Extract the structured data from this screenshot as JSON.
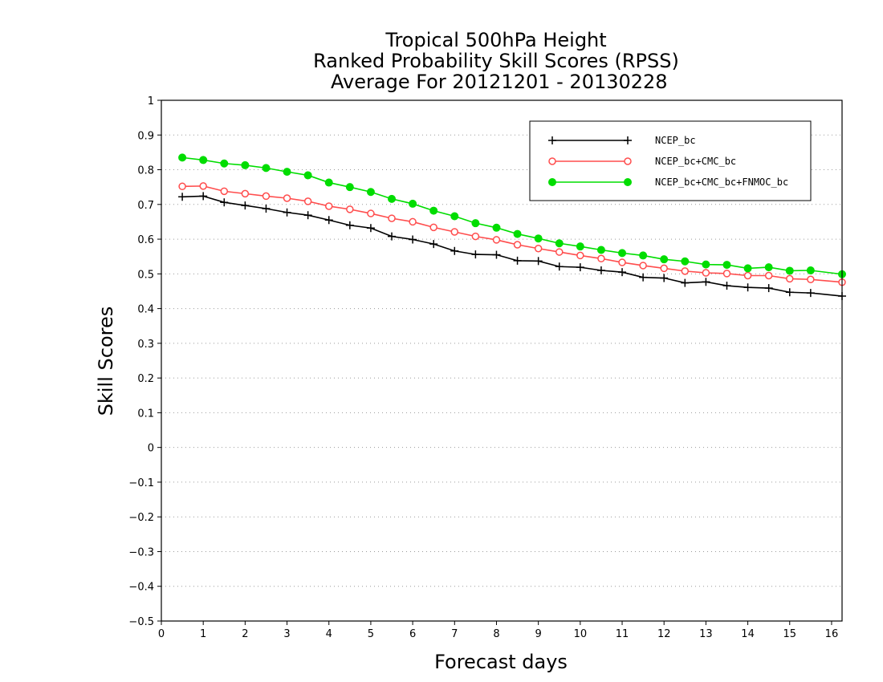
{
  "chart_data": {
    "type": "line",
    "title_lines": [
      "Tropical 500hPa Height",
      "Ranked Probability Skill Scores (RPSS)",
      " Average For 20121201 - 20130228"
    ],
    "xlabel": "Forecast days",
    "ylabel": "Skill Scores",
    "xlim": [
      0,
      16.25
    ],
    "ylim": [
      -0.5,
      1
    ],
    "x_ticks": [
      0,
      1,
      2,
      3,
      4,
      5,
      6,
      7,
      8,
      9,
      10,
      11,
      12,
      13,
      14,
      15,
      16
    ],
    "y_ticks": [
      -0.5,
      -0.4,
      -0.3,
      -0.2,
      -0.1,
      0,
      0.1,
      0.2,
      0.3,
      0.4,
      0.5,
      0.6,
      0.7,
      0.8,
      0.9,
      1
    ],
    "x_tick_labels": [
      "0",
      "1",
      "2",
      "3",
      "4",
      "5",
      "6",
      "7",
      "8",
      "9",
      "10",
      "11",
      "12",
      "13",
      "14",
      "15",
      "16"
    ],
    "y_tick_labels": [
      "−0.5",
      "−0.4",
      "−0.3",
      "−0.2",
      "−0.1",
      "0",
      "0.1",
      "0.2",
      "0.3",
      "0.4",
      "0.5",
      "0.6",
      "0.7",
      "0.8",
      "0.9",
      "1"
    ],
    "grid": "horizontal dotted",
    "legend_position": "top-right",
    "x": [
      0.5,
      1,
      1.5,
      2,
      2.5,
      3,
      3.5,
      4,
      4.5,
      5,
      5.5,
      6,
      6.5,
      7,
      7.5,
      8,
      8.5,
      9,
      9.5,
      10,
      10.5,
      11,
      11.5,
      12,
      12.5,
      13,
      13.5,
      14,
      14.5,
      15,
      15.5,
      16.25
    ],
    "series": [
      {
        "name": "NCEP_bc",
        "color": "#000000",
        "marker": "plus",
        "values": [
          0.722,
          0.724,
          0.706,
          0.697,
          0.688,
          0.677,
          0.669,
          0.655,
          0.64,
          0.632,
          0.608,
          0.599,
          0.586,
          0.566,
          0.556,
          0.555,
          0.538,
          0.537,
          0.521,
          0.519,
          0.51,
          0.505,
          0.49,
          0.488,
          0.474,
          0.477,
          0.466,
          0.461,
          0.459,
          0.447,
          0.445,
          0.436
        ]
      },
      {
        "name": "NCEP_bc+CMC_bc",
        "color": "#ff4d4d",
        "marker": "open-circle",
        "values": [
          0.752,
          0.753,
          0.738,
          0.731,
          0.724,
          0.718,
          0.709,
          0.695,
          0.686,
          0.674,
          0.66,
          0.65,
          0.634,
          0.621,
          0.608,
          0.598,
          0.584,
          0.573,
          0.563,
          0.553,
          0.544,
          0.533,
          0.524,
          0.516,
          0.508,
          0.503,
          0.501,
          0.495,
          0.495,
          0.486,
          0.484,
          0.476
        ]
      },
      {
        "name": "NCEP_bc+CMC_bc+FNMOC_bc",
        "color": "#00dd00",
        "marker": "filled-circle",
        "values": [
          0.835,
          0.828,
          0.818,
          0.813,
          0.805,
          0.794,
          0.784,
          0.763,
          0.75,
          0.736,
          0.716,
          0.702,
          0.682,
          0.666,
          0.646,
          0.633,
          0.615,
          0.602,
          0.588,
          0.579,
          0.569,
          0.56,
          0.553,
          0.542,
          0.536,
          0.527,
          0.526,
          0.516,
          0.519,
          0.509,
          0.51,
          0.499
        ]
      }
    ]
  }
}
